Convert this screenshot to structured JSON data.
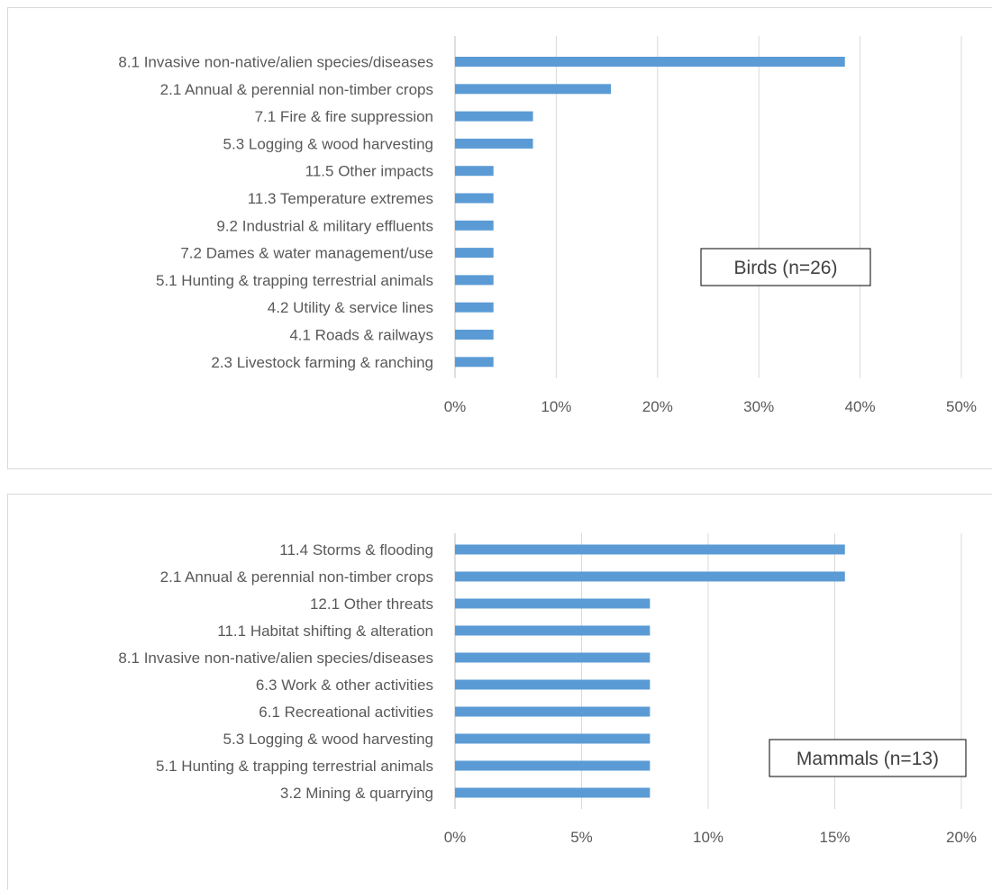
{
  "chart_data": [
    {
      "type": "bar",
      "orientation": "horizontal",
      "categories": [
        "8.1 Invasive non-native/alien species/diseases",
        "2.1 Annual & perennial non-timber crops",
        "7.1 Fire & fire suppression",
        "5.3 Logging & wood harvesting",
        "11.5 Other impacts",
        "11.3 Temperature extremes",
        "9.2 Industrial & military effluents",
        "7.2 Dames & water management/use",
        "5.1 Hunting & trapping terrestrial animals",
        "4.2 Utility & service lines",
        "4.1 Roads & railways",
        "2.3 Livestock farming & ranching"
      ],
      "values": [
        0.385,
        0.154,
        0.077,
        0.077,
        0.038,
        0.038,
        0.038,
        0.038,
        0.038,
        0.038,
        0.038,
        0.038
      ],
      "xlim": [
        0,
        0.5
      ],
      "ticks": [
        0,
        0.1,
        0.2,
        0.3,
        0.4,
        0.5
      ],
      "tick_labels": [
        "0%",
        "10%",
        "20%",
        "30%",
        "40%",
        "50%"
      ],
      "annotation": "Birds (n=26)",
      "grid": true,
      "bar_color": "#5b9bd5"
    },
    {
      "type": "bar",
      "orientation": "horizontal",
      "categories": [
        "11.4 Storms & flooding",
        "2.1 Annual & perennial non-timber crops",
        "12.1 Other threats",
        "11.1 Habitat shifting & alteration",
        "8.1 Invasive non-native/alien species/diseases",
        "6.3 Work & other activities",
        "6.1 Recreational activities",
        "5.3 Logging & wood harvesting",
        "5.1 Hunting & trapping terrestrial animals",
        "3.2 Mining & quarrying"
      ],
      "values": [
        0.154,
        0.154,
        0.077,
        0.077,
        0.077,
        0.077,
        0.077,
        0.077,
        0.077,
        0.077
      ],
      "xlim": [
        0,
        0.2
      ],
      "ticks": [
        0,
        0.05,
        0.1,
        0.15,
        0.2
      ],
      "tick_labels": [
        "0%",
        "5%",
        "10%",
        "15%",
        "20%"
      ],
      "annotation": "Mammals (n=13)",
      "grid": true,
      "bar_color": "#5b9bd5"
    }
  ]
}
